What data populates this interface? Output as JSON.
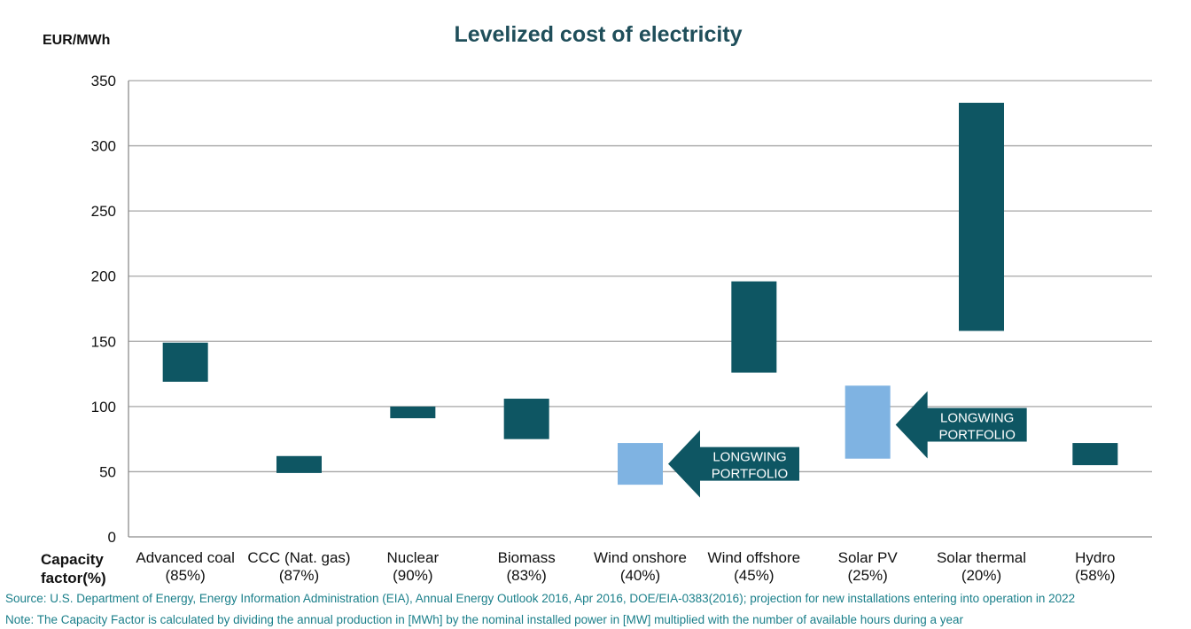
{
  "chart_data": {
    "type": "floating-bar",
    "title": "Levelized cost of electricity",
    "ylabel": "EUR/MWh",
    "ylim": [
      0,
      350
    ],
    "yticks": [
      0,
      50,
      100,
      150,
      200,
      250,
      300,
      350
    ],
    "grid": true,
    "capacity_factor_label": "Capacity factor (%)",
    "categories": [
      {
        "name": "Advanced coal",
        "capacity_factor": "(85%)",
        "low": 119,
        "high": 149,
        "color": "#0e5663"
      },
      {
        "name": "CCC (Nat. gas)",
        "capacity_factor": "(87%)",
        "low": 49,
        "high": 62,
        "color": "#0e5663"
      },
      {
        "name": "Nuclear",
        "capacity_factor": "(90%)",
        "low": 91,
        "high": 100,
        "color": "#0e5663"
      },
      {
        "name": "Biomass",
        "capacity_factor": "(83%)",
        "low": 75,
        "high": 106,
        "color": "#0e5663"
      },
      {
        "name": "Wind onshore",
        "capacity_factor": "(40%)",
        "low": 40,
        "high": 72,
        "color": "#7fb3e2"
      },
      {
        "name": "Wind offshore",
        "capacity_factor": "(45%)",
        "low": 126,
        "high": 196,
        "color": "#0e5663"
      },
      {
        "name": "Solar PV",
        "capacity_factor": "(25%)",
        "low": 60,
        "high": 116,
        "color": "#7fb3e2"
      },
      {
        "name": "Solar thermal",
        "capacity_factor": "(20%)",
        "low": 158,
        "high": 333,
        "color": "#0e5663"
      },
      {
        "name": "Hydro",
        "capacity_factor": "(58%)",
        "low": 55,
        "high": 72,
        "color": "#0e5663"
      }
    ],
    "annotations": [
      {
        "category": "Wind onshore",
        "text_lines": [
          "LONGWING",
          "PORTFOLIO"
        ],
        "value": 56
      },
      {
        "category": "Solar PV",
        "text_lines": [
          "LONGWING",
          "PORTFOLIO"
        ],
        "value": 86
      }
    ]
  },
  "footnotes": {
    "source": "Source: U.S. Department of Energy, Energy Information Administration (EIA), Annual Energy Outlook 2016, Apr 2016, DOE/EIA-0383(2016); projection for new installations entering into operation in 2022",
    "note": "Note: The Capacity Factor is calculated by dividing the annual production in [MWh] by the nominal installed power in [MW] multiplied with the number of available hours during a year"
  }
}
